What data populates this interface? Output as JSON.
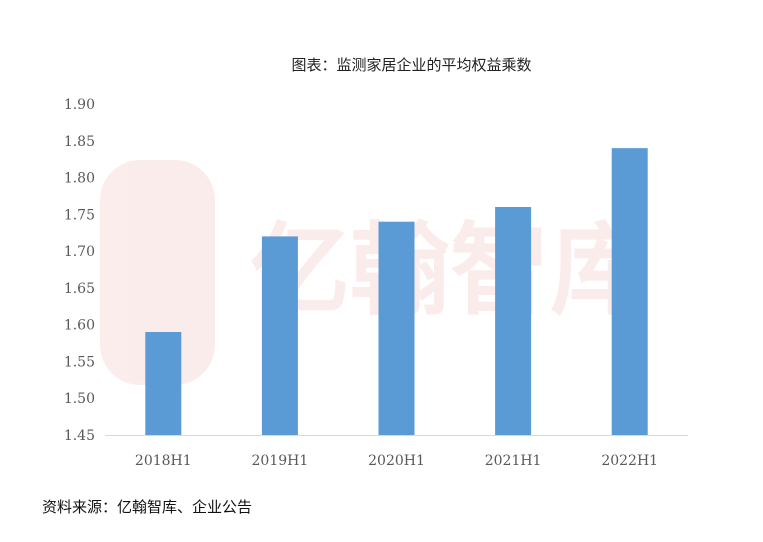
{
  "chart_data": {
    "type": "bar",
    "title": "图表：监测家居企业的平均权益乘数",
    "categories": [
      "2018H1",
      "2019H1",
      "2020H1",
      "2021H1",
      "2022H1"
    ],
    "values": [
      1.59,
      1.72,
      1.74,
      1.76,
      1.84
    ],
    "ylim": [
      1.45,
      1.9
    ],
    "yticks": [
      "1.45",
      "1.50",
      "1.55",
      "1.60",
      "1.65",
      "1.70",
      "1.75",
      "1.80",
      "1.85",
      "1.90"
    ],
    "xlabel": "",
    "ylabel": "",
    "grid": false,
    "bar_color": "#5b9bd5",
    "watermark": "亿翰智库"
  },
  "source": "资料来源：亿翰智库、企业公告"
}
